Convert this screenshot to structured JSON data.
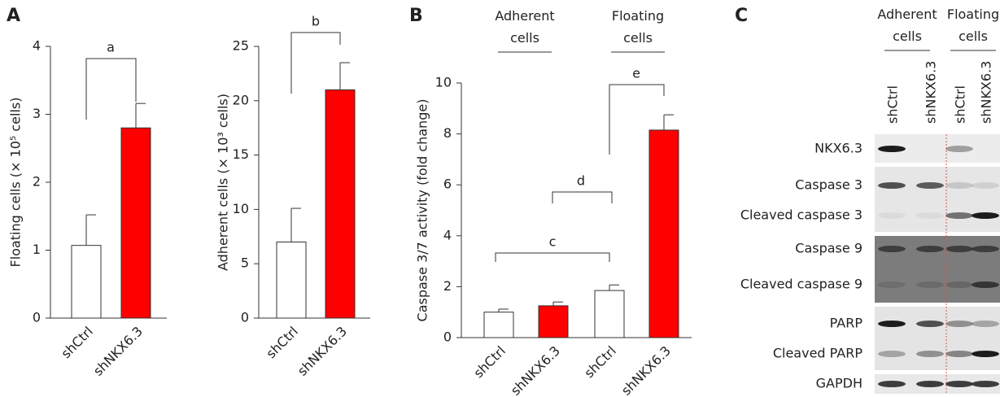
{
  "panel_labels": [
    "A",
    "B",
    "C"
  ],
  "chart_data": [
    {
      "type": "bar",
      "ylabel": "Floating cells (× 10⁵ cells)",
      "categories": [
        "shCtrl",
        "shNKX6.3"
      ],
      "values": [
        1.07,
        2.8
      ],
      "errors": [
        0.45,
        0.36
      ],
      "colors": [
        "#ffffff",
        "#ff0000"
      ],
      "ylim": [
        0,
        4
      ],
      "yticks": [
        0,
        1,
        2,
        3,
        4
      ],
      "annotations": [
        "a"
      ]
    },
    {
      "type": "bar",
      "ylabel": "Adherent cells (× 10³ cells)",
      "categories": [
        "shCtrl",
        "shNKX6.3"
      ],
      "values": [
        7.0,
        21.0
      ],
      "errors": [
        3.1,
        2.5
      ],
      "colors": [
        "#ffffff",
        "#ff0000"
      ],
      "ylim": [
        0,
        25
      ],
      "yticks": [
        0,
        5,
        10,
        15,
        20,
        25
      ],
      "annotations": [
        "b"
      ]
    },
    {
      "type": "bar",
      "ylabel": "Caspase 3/7 activity (fold change)",
      "groups": [
        "Adherent cells",
        "Floating cells"
      ],
      "categories": [
        "shCtrl",
        "shNKX6.3",
        "shCtrl",
        "shNKX6.3"
      ],
      "values": [
        1.0,
        1.25,
        1.85,
        8.15
      ],
      "errors": [
        0.12,
        0.15,
        0.22,
        0.6
      ],
      "colors": [
        "#ffffff",
        "#ff0000",
        "#ffffff",
        "#ff0000"
      ],
      "ylim": [
        0,
        10
      ],
      "yticks": [
        0,
        2,
        4,
        6,
        8,
        10
      ],
      "annotations": [
        "c",
        "d",
        "e"
      ]
    }
  ],
  "blot": {
    "groups": [
      "Adherent cells",
      "Floating cells"
    ],
    "lanes": [
      "shCtrl",
      "shNKX6.3",
      "shCtrl",
      "shNKX6.3"
    ],
    "rows": [
      "NKX6.3",
      "Caspase 3",
      "Cleaved caspase 3",
      "Caspase 9",
      "Cleaved caspase 9",
      "PARP",
      "Cleaved PARP",
      "GAPDH"
    ]
  }
}
